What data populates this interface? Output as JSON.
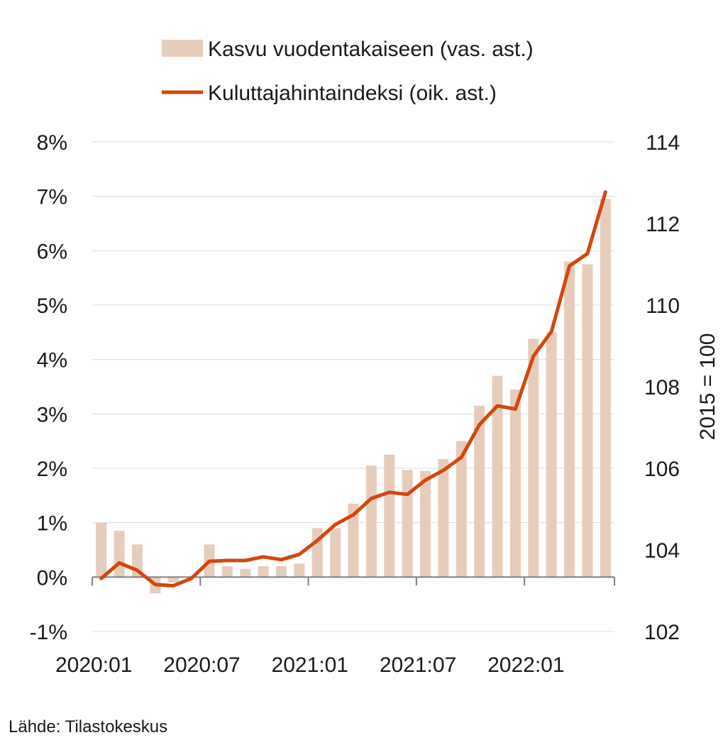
{
  "chart_data": {
    "type": "bar+line",
    "categories": [
      "2020:01",
      "2020:02",
      "2020:03",
      "2020:04",
      "2020:05",
      "2020:06",
      "2020:07",
      "2020:08",
      "2020:09",
      "2020:10",
      "2020:11",
      "2020:12",
      "2021:01",
      "2021:02",
      "2021:03",
      "2021:04",
      "2021:05",
      "2021:06",
      "2021:07",
      "2021:08",
      "2021:09",
      "2021:10",
      "2021:11",
      "2021:12",
      "2022:01",
      "2022:02",
      "2022:03",
      "2022:04",
      "2022:05"
    ],
    "x_tick_labels": [
      "2020:01",
      "2020:07",
      "2021:01",
      "2021:07",
      "2022:01"
    ],
    "series": [
      {
        "name": "Kasvu vuodentakaiseen (vas. ast.)",
        "type": "bar",
        "axis": "left",
        "color": "#e6cdbb",
        "values": [
          1.0,
          0.85,
          0.6,
          -0.3,
          -0.1,
          0.0,
          0.6,
          0.2,
          0.15,
          0.2,
          0.2,
          0.25,
          0.9,
          0.9,
          1.35,
          2.05,
          2.25,
          1.97,
          1.95,
          2.17,
          2.5,
          3.15,
          3.7,
          3.45,
          4.38,
          4.5,
          5.8,
          5.75,
          6.95
        ]
      },
      {
        "name": "Kuluttajahintaindeksi (oik. ast.)",
        "type": "line",
        "axis": "right",
        "color": "#d4460f",
        "values": [
          103.3,
          103.68,
          103.5,
          103.15,
          103.12,
          103.3,
          103.72,
          103.74,
          103.74,
          103.83,
          103.76,
          103.89,
          104.23,
          104.62,
          104.86,
          105.26,
          105.41,
          105.36,
          105.71,
          105.95,
          106.27,
          107.07,
          107.53,
          107.45,
          108.75,
          109.35,
          110.96,
          111.26,
          112.77
        ]
      }
    ],
    "left_axis": {
      "ylim": [
        -1,
        8
      ],
      "ticks": [
        "-1%",
        "0%",
        "1%",
        "2%",
        "3%",
        "4%",
        "5%",
        "6%",
        "7%",
        "8%"
      ]
    },
    "right_axis": {
      "ylim": [
        102,
        114
      ],
      "ticks": [
        "102",
        "104",
        "106",
        "108",
        "110",
        "112",
        "114"
      ],
      "label": "2015 = 100"
    },
    "grid": true,
    "legend_position": "top",
    "source": "Lähde: Tilastokeskus"
  }
}
